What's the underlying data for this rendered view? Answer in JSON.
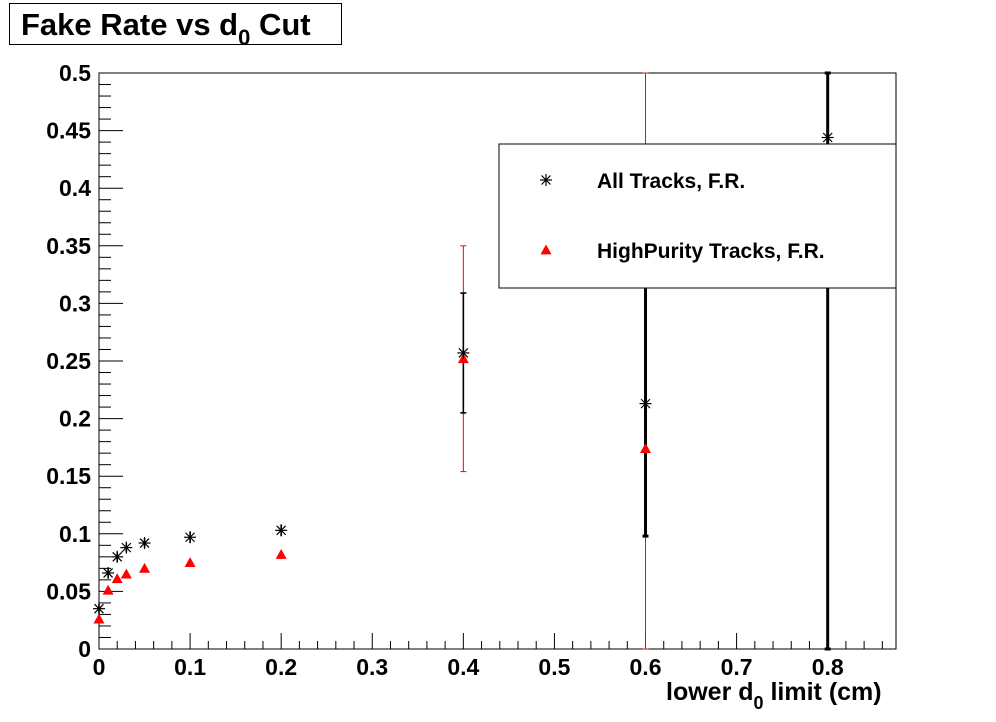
{
  "chart_data": {
    "type": "scatter",
    "title_prefix": "Fake Rate vs d",
    "title_subscript": "0",
    "title_suffix": " Cut",
    "xlabel_prefix": "lower d",
    "xlabel_subscript": "0",
    "xlabel_suffix": " limit (cm)",
    "ylabel": "",
    "xlim": [
      0,
      0.875
    ],
    "ylim": [
      0,
      0.5
    ],
    "x_ticks": [
      "0",
      "0.1",
      "0.2",
      "0.3",
      "0.4",
      "0.5",
      "0.6",
      "0.7",
      "0.8"
    ],
    "y_ticks": [
      "0",
      "0.05",
      "0.1",
      "0.15",
      "0.2",
      "0.25",
      "0.3",
      "0.35",
      "0.4",
      "0.45",
      "0.5"
    ],
    "grid": false,
    "legend_position": "top-right",
    "series": [
      {
        "name": "All Tracks, F.R.",
        "marker": "asterisk",
        "color": "#000000",
        "points": [
          {
            "x": 0.0,
            "y": 0.035,
            "err": 0.004
          },
          {
            "x": 0.01,
            "y": 0.066,
            "err": 0.004
          },
          {
            "x": 0.02,
            "y": 0.08,
            "err": 0.004
          },
          {
            "x": 0.03,
            "y": 0.088,
            "err": 0.004
          },
          {
            "x": 0.05,
            "y": 0.092,
            "err": 0.004
          },
          {
            "x": 0.1,
            "y": 0.097,
            "err": 0.005
          },
          {
            "x": 0.2,
            "y": 0.103,
            "err": 0.005
          },
          {
            "x": 0.4,
            "y": 0.257,
            "err": 0.052
          },
          {
            "x": 0.6,
            "y": 0.213,
            "err": 0.115
          },
          {
            "x": 0.8,
            "y": 0.444,
            "err": 0.444
          }
        ]
      },
      {
        "name": "HighPurity Tracks, F.R.",
        "marker": "triangle",
        "color": "#ff0000",
        "points": [
          {
            "x": 0.0,
            "y": 0.026,
            "err": 0.002
          },
          {
            "x": 0.01,
            "y": 0.051,
            "err": 0.003
          },
          {
            "x": 0.02,
            "y": 0.061,
            "err": 0.003
          },
          {
            "x": 0.03,
            "y": 0.065,
            "err": 0.003
          },
          {
            "x": 0.05,
            "y": 0.07,
            "err": 0.003
          },
          {
            "x": 0.1,
            "y": 0.075,
            "err": 0.003
          },
          {
            "x": 0.2,
            "y": 0.082,
            "err": 0.004
          },
          {
            "x": 0.4,
            "y": 0.252,
            "err": 0.098
          },
          {
            "x": 0.6,
            "y": 0.174,
            "err": 0.5
          }
        ]
      }
    ]
  }
}
